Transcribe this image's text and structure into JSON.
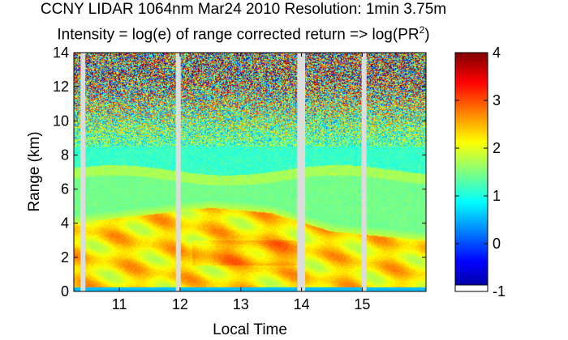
{
  "chart_data": {
    "type": "heatmap",
    "title": "CCNY LIDAR 1064nm Mar24 2010 Resolution: 1min 3.75m",
    "subtitle_prefix": "Intensity = log(e) of range corrected return => log(PR",
    "subtitle_sup": "2",
    "subtitle_suffix": ")",
    "xlabel": "Local Time",
    "ylabel": "Range (km)",
    "xlim": [
      10.25,
      16.05
    ],
    "ylim": [
      0,
      14
    ],
    "xticks": [
      11,
      12,
      13,
      14,
      15
    ],
    "xtick_labels": [
      "11",
      "12",
      "13",
      "14",
      "15"
    ],
    "yticks": [
      0,
      2,
      4,
      6,
      8,
      10,
      12,
      14
    ],
    "ytick_labels": [
      "0",
      "2",
      "4",
      "6",
      "8",
      "10",
      "12",
      "14"
    ],
    "colorbar": {
      "clim": [
        -1,
        4
      ],
      "ticks": [
        -1,
        0,
        1,
        2,
        3,
        4
      ],
      "tick_labels": [
        "-1",
        "0",
        "1",
        "2",
        "3",
        "4"
      ],
      "colormap": "jet"
    },
    "data_gaps": [
      10.4,
      11.97,
      13.97,
      14.02,
      15.03
    ],
    "layer_features": {
      "aerosol_layer_top_km": [
        4.0,
        4.5,
        4.9,
        4.6,
        3.5,
        3.0
      ],
      "layer_times": [
        10.3,
        11.5,
        12.5,
        13.5,
        14.5,
        16.0
      ],
      "residual_layer_km": [
        6.5,
        7.5
      ],
      "noise_onset_km": 8.5
    }
  }
}
